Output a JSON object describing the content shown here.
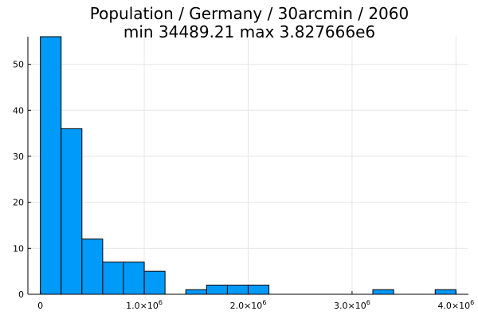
{
  "chart_data": {
    "type": "bar",
    "title": "Population / Germany / 30arcmin / 2060",
    "subtitle": "min 34489.21  max 3.827666e6",
    "xlabel": "",
    "ylabel": "",
    "bin_width": 200000,
    "bins": [
      {
        "x0": 0,
        "x1": 200000,
        "count": 56
      },
      {
        "x0": 200000,
        "x1": 400000,
        "count": 36
      },
      {
        "x0": 400000,
        "x1": 600000,
        "count": 12
      },
      {
        "x0": 600000,
        "x1": 800000,
        "count": 7
      },
      {
        "x0": 800000,
        "x1": 1000000,
        "count": 7
      },
      {
        "x0": 1000000,
        "x1": 1200000,
        "count": 5
      },
      {
        "x0": 1400000,
        "x1": 1600000,
        "count": 1
      },
      {
        "x0": 1600000,
        "x1": 1800000,
        "count": 2
      },
      {
        "x0": 1800000,
        "x1": 2000000,
        "count": 2
      },
      {
        "x0": 2000000,
        "x1": 2200000,
        "count": 2
      },
      {
        "x0": 3200000,
        "x1": 3400000,
        "count": 1
      },
      {
        "x0": 3800000,
        "x1": 4000000,
        "count": 1
      }
    ],
    "xlim": [
      -120000,
      4120000
    ],
    "ylim": [
      0,
      56
    ],
    "x_ticks": [
      {
        "value": 0,
        "label": "0",
        "exp": ""
      },
      {
        "value": 1000000,
        "label": "1.0×10",
        "exp": "6"
      },
      {
        "value": 2000000,
        "label": "2.0×10",
        "exp": "6"
      },
      {
        "value": 3000000,
        "label": "3.0×10",
        "exp": "6"
      },
      {
        "value": 4000000,
        "label": "4.0×10",
        "exp": "6"
      }
    ],
    "y_ticks": [
      0,
      10,
      20,
      30,
      40,
      50
    ],
    "grid": true,
    "legend": "none",
    "bar_color": "#009af9",
    "bar_edge_color": "#000000"
  }
}
